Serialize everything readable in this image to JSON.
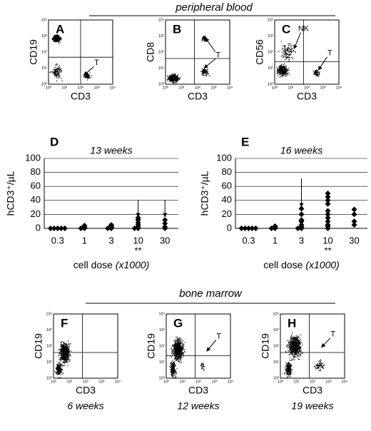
{
  "sections": {
    "blood": "peripheral blood",
    "marrow": "bone marrow"
  },
  "flow_ticks": [
    "10⁰",
    "10¹",
    "10²",
    "10³",
    "10⁴"
  ],
  "flow_panels": [
    {
      "letter": "A",
      "ylabel": "CD19",
      "xlabel": "CD3",
      "annotations": [
        "T"
      ]
    },
    {
      "letter": "B",
      "ylabel": "CD8",
      "xlabel": "CD3",
      "annotations": [
        "T"
      ]
    },
    {
      "letter": "C",
      "ylabel": "CD56",
      "xlabel": "CD3",
      "annotations": [
        "NK",
        "T"
      ]
    },
    {
      "letter": "F",
      "ylabel": "CD19",
      "xlabel": "CD3",
      "annotations": [],
      "note": "6 weeks"
    },
    {
      "letter": "G",
      "ylabel": "CD19",
      "xlabel": "CD3",
      "annotations": [
        "T"
      ],
      "note": "12 weeks"
    },
    {
      "letter": "H",
      "ylabel": "CD19",
      "xlabel": "CD3",
      "annotations": [
        "T"
      ],
      "note": "19 weeks"
    }
  ],
  "chart_data": [
    {
      "type": "strip",
      "letter": "D",
      "title": "13 weeks",
      "ylabel": "hCD3⁺/µL",
      "xlabel": "cell dose ",
      "xlabel_unit": "(x1000)",
      "categories": [
        "0.3",
        "1",
        "3",
        "10",
        "30"
      ],
      "values": [
        [
          0,
          0,
          0,
          0,
          0
        ],
        [
          0,
          0,
          1,
          2,
          4
        ],
        [
          0,
          0,
          1,
          2,
          4,
          5
        ],
        [
          0,
          0,
          2,
          5,
          8,
          12,
          15
        ],
        [
          0,
          2,
          7,
          12
        ]
      ],
      "color": "#000000",
      "ylim": [
        0,
        100
      ],
      "yticks": [
        0,
        20,
        40,
        60,
        80,
        100
      ],
      "grid": true,
      "arrows": [
        "10",
        "30"
      ],
      "annotations": [
        {
          "text": "**",
          "category": "10"
        }
      ]
    },
    {
      "type": "strip",
      "letter": "E",
      "title": "16 weeks",
      "ylabel": "hCD3⁺/µL",
      "xlabel": "cell dose ",
      "xlabel_unit": "(x1000)",
      "categories": [
        "0.3",
        "1",
        "3",
        "10",
        "30"
      ],
      "values": [
        [
          0,
          0,
          0,
          0,
          0
        ],
        [
          0,
          0,
          1,
          2,
          3
        ],
        [
          0,
          0,
          2,
          5,
          10,
          12,
          20,
          28
        ],
        [
          0,
          3,
          5,
          10,
          15,
          20,
          25,
          35,
          40,
          45,
          50
        ],
        [
          5,
          10,
          20,
          27
        ]
      ],
      "color": "#000000",
      "ylim": [
        0,
        100
      ],
      "yticks": [
        0,
        20,
        40,
        60,
        80,
        100
      ],
      "grid": true,
      "arrows": [
        "3"
      ],
      "annotations": [
        {
          "text": "**",
          "category": "10"
        }
      ]
    }
  ]
}
